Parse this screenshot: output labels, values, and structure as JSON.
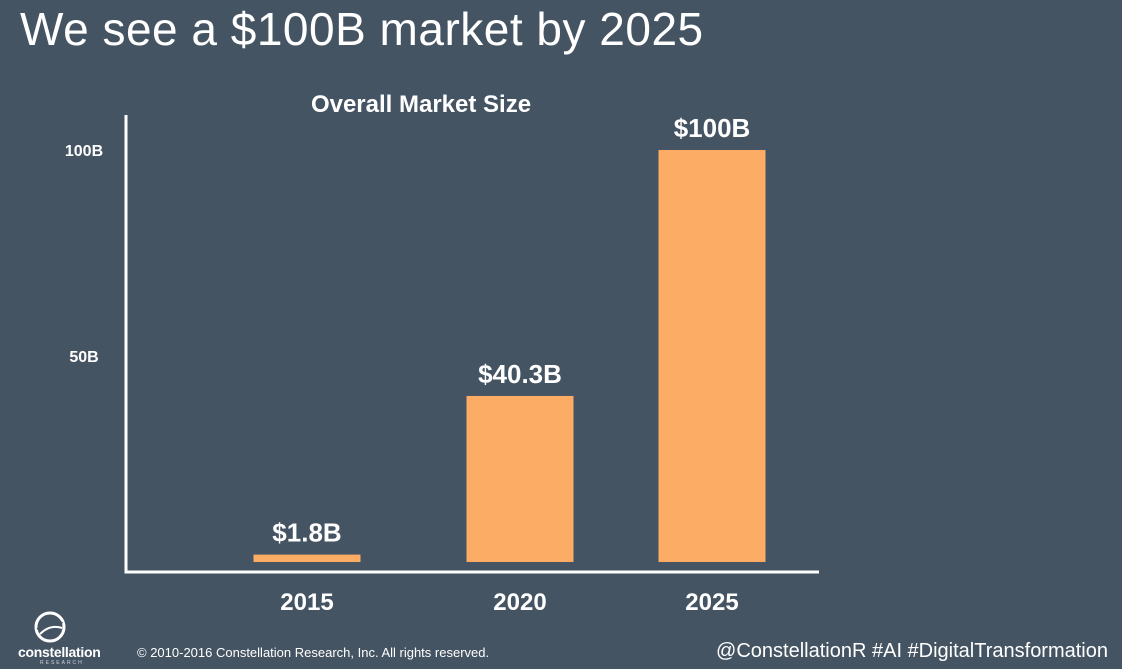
{
  "slide": {
    "title": "We see a $100B market by 2025"
  },
  "chart_data": {
    "type": "bar",
    "title": "Overall Market Size",
    "categories": [
      "2015",
      "2020",
      "2025"
    ],
    "values": [
      1.8,
      40.3,
      100
    ],
    "value_labels": [
      "$1.8B",
      "$40.3B",
      "$100B"
    ],
    "y_ticks": [
      {
        "value": 50,
        "label": "50B"
      },
      {
        "value": 100,
        "label": "100B"
      }
    ],
    "ylim": [
      0,
      100
    ],
    "xlabel": "",
    "ylabel": "",
    "grid": false,
    "legend": "none",
    "colors": {
      "bar": "#fcac64",
      "axis": "#ffffff",
      "background": "#455463"
    }
  },
  "footer": {
    "logo_name": "constellation",
    "logo_sub": "RESEARCH",
    "logo_icon": "constellation-logo-icon",
    "copyright": "© 2010-2016 Constellation Research, Inc. All rights reserved.",
    "hashtags": "@ConstellationR #AI #DigitalTransformation"
  }
}
